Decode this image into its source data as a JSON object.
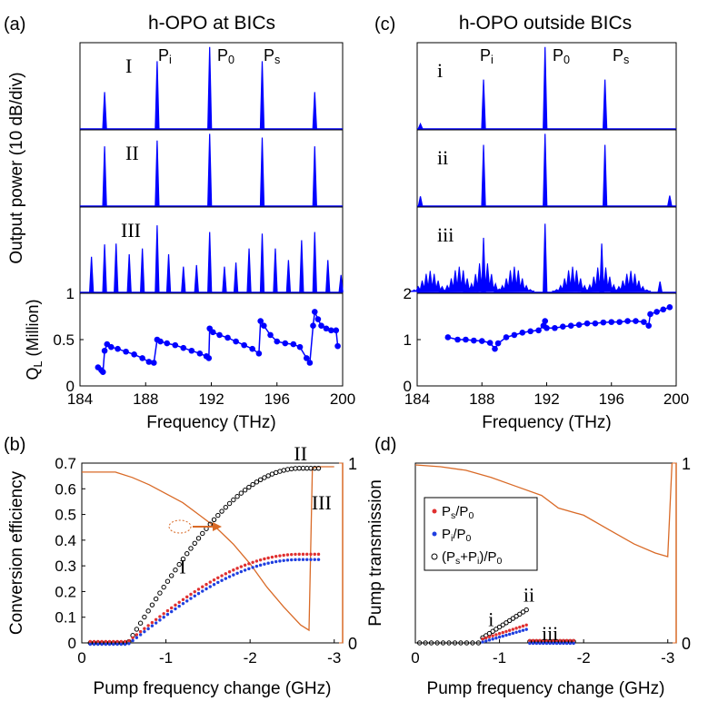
{
  "chart_data": {
    "panel_labels": [
      "(a)",
      "(b)",
      "(c)",
      "(d)"
    ],
    "panel_a": {
      "type": "line",
      "title": "h-OPO at BICs",
      "ylabel": "Output power (10 dB/div)",
      "xlim": [
        184,
        200
      ],
      "peak_labels": [
        "P",
        "P",
        "P"
      ],
      "peak_label_subs": [
        "i",
        "0",
        "s"
      ],
      "spectra": [
        {
          "name": "I",
          "peaks": [
            {
              "f": 185.5,
              "h": 0.43
            },
            {
              "f": 188.7,
              "h": 0.8
            },
            {
              "f": 191.9,
              "h": 0.97
            },
            {
              "f": 195.1,
              "h": 0.8
            },
            {
              "f": 198.3,
              "h": 0.43
            }
          ]
        },
        {
          "name": "II",
          "peaks": [
            {
              "f": 185.5,
              "h": 0.8
            },
            {
              "f": 188.7,
              "h": 0.88
            },
            {
              "f": 191.9,
              "h": 0.97
            },
            {
              "f": 195.1,
              "h": 0.92
            },
            {
              "f": 198.3,
              "h": 0.8
            }
          ]
        },
        {
          "name": "III",
          "peaks": [
            {
              "f": 184.7,
              "h": 0.42
            },
            {
              "f": 185.5,
              "h": 0.57
            },
            {
              "f": 186.2,
              "h": 0.58
            },
            {
              "f": 187.0,
              "h": 0.45
            },
            {
              "f": 187.8,
              "h": 0.52
            },
            {
              "f": 188.7,
              "h": 0.8
            },
            {
              "f": 189.4,
              "h": 0.45
            },
            {
              "f": 190.3,
              "h": 0.3
            },
            {
              "f": 191.1,
              "h": 0.32
            },
            {
              "f": 191.9,
              "h": 0.72
            },
            {
              "f": 192.8,
              "h": 0.3
            },
            {
              "f": 193.5,
              "h": 0.35
            },
            {
              "f": 194.3,
              "h": 0.52
            },
            {
              "f": 195.1,
              "h": 0.7
            },
            {
              "f": 195.9,
              "h": 0.52
            },
            {
              "f": 196.7,
              "h": 0.38
            },
            {
              "f": 197.5,
              "h": 0.62
            },
            {
              "f": 198.3,
              "h": 0.72
            },
            {
              "f": 199.1,
              "h": 0.38
            },
            {
              "f": 199.9,
              "h": 0.2
            }
          ]
        }
      ],
      "ql": {
        "ylabel": "Q",
        "ylabel_sub": "L",
        "ylabel_rest": " (Million)",
        "ylim": [
          0,
          1
        ],
        "yticks": [
          0,
          0.5,
          1
        ],
        "xticks": [
          184,
          188,
          192,
          196,
          200
        ],
        "xlabel": "Frequency (THz)",
        "points": [
          [
            185.1,
            0.2
          ],
          [
            185.3,
            0.17
          ],
          [
            185.4,
            0.15
          ],
          [
            185.5,
            0.38
          ],
          [
            185.65,
            0.45
          ],
          [
            185.9,
            0.42
          ],
          [
            186.3,
            0.4
          ],
          [
            186.8,
            0.37
          ],
          [
            187.3,
            0.34
          ],
          [
            187.8,
            0.3
          ],
          [
            188.2,
            0.26
          ],
          [
            188.5,
            0.25
          ],
          [
            188.7,
            0.5
          ],
          [
            188.9,
            0.48
          ],
          [
            189.3,
            0.46
          ],
          [
            189.8,
            0.44
          ],
          [
            190.3,
            0.41
          ],
          [
            190.8,
            0.38
          ],
          [
            191.3,
            0.35
          ],
          [
            191.7,
            0.32
          ],
          [
            191.85,
            0.3
          ],
          [
            191.9,
            0.62
          ],
          [
            192.1,
            0.58
          ],
          [
            192.5,
            0.55
          ],
          [
            193.0,
            0.52
          ],
          [
            193.5,
            0.48
          ],
          [
            194.0,
            0.44
          ],
          [
            194.5,
            0.4
          ],
          [
            194.9,
            0.35
          ],
          [
            195.0,
            0.7
          ],
          [
            195.2,
            0.65
          ],
          [
            195.6,
            0.55
          ],
          [
            196.0,
            0.48
          ],
          [
            196.5,
            0.46
          ],
          [
            197.0,
            0.45
          ],
          [
            197.4,
            0.42
          ],
          [
            197.8,
            0.3
          ],
          [
            198.0,
            0.25
          ],
          [
            198.2,
            0.65
          ],
          [
            198.3,
            0.8
          ],
          [
            198.5,
            0.72
          ],
          [
            198.7,
            0.65
          ],
          [
            199.0,
            0.62
          ],
          [
            199.3,
            0.6
          ],
          [
            199.6,
            0.6
          ],
          [
            199.7,
            0.43
          ]
        ]
      }
    },
    "panel_c": {
      "type": "line",
      "title": "h-OPO outside BICs",
      "xlim": [
        184,
        200
      ],
      "peak_labels": [
        "P",
        "P",
        "P"
      ],
      "peak_label_subs": [
        "i",
        "0",
        "s"
      ],
      "spectra": [
        {
          "name": "i",
          "peaks": [
            {
              "f": 184.2,
              "h": 0.05
            },
            {
              "f": 188.1,
              "h": 0.58
            },
            {
              "f": 191.9,
              "h": 0.97
            },
            {
              "f": 195.6,
              "h": 0.58
            }
          ]
        },
        {
          "name": "ii",
          "peaks": [
            {
              "f": 184.2,
              "h": 0.12
            },
            {
              "f": 188.1,
              "h": 0.82
            },
            {
              "f": 191.9,
              "h": 0.97
            },
            {
              "f": 195.6,
              "h": 0.82
            },
            {
              "f": 199.6,
              "h": 0.13
            }
          ]
        },
        {
          "name": "iii",
          "peaks": [
            {
              "f": 188.1,
              "h": 0.65
            },
            {
              "f": 191.9,
              "h": 0.82
            },
            {
              "f": 195.4,
              "h": 0.58
            },
            {
              "f": 199.0,
              "h": 0.12
            }
          ],
          "broad": [
            {
              "f": 184.8,
              "h": 0.25
            },
            {
              "f": 186.6,
              "h": 0.3
            },
            {
              "f": 188.1,
              "h": 0.4
            },
            {
              "f": 190.0,
              "h": 0.3
            },
            {
              "f": 193.6,
              "h": 0.3
            },
            {
              "f": 195.4,
              "h": 0.34
            },
            {
              "f": 197.2,
              "h": 0.25
            }
          ]
        }
      ],
      "ql": {
        "ylim": [
          0,
          2
        ],
        "yticks": [
          0,
          1,
          2
        ],
        "xticks": [
          184,
          188,
          192,
          196,
          200
        ],
        "xlabel": "Frequency (THz)",
        "points": [
          [
            185.9,
            1.05
          ],
          [
            186.5,
            1.0
          ],
          [
            187.0,
            1.0
          ],
          [
            187.5,
            0.98
          ],
          [
            188.0,
            0.97
          ],
          [
            188.5,
            0.93
          ],
          [
            188.8,
            0.8
          ],
          [
            189.0,
            0.92
          ],
          [
            189.5,
            1.05
          ],
          [
            190.0,
            1.1
          ],
          [
            190.5,
            1.15
          ],
          [
            191.0,
            1.18
          ],
          [
            191.5,
            1.2
          ],
          [
            191.8,
            1.3
          ],
          [
            191.9,
            1.4
          ],
          [
            192.0,
            1.25
          ],
          [
            192.5,
            1.25
          ],
          [
            193.0,
            1.28
          ],
          [
            193.5,
            1.3
          ],
          [
            194.0,
            1.32
          ],
          [
            194.5,
            1.35
          ],
          [
            195.0,
            1.35
          ],
          [
            195.5,
            1.37
          ],
          [
            196.0,
            1.38
          ],
          [
            196.5,
            1.38
          ],
          [
            197.0,
            1.4
          ],
          [
            197.5,
            1.4
          ],
          [
            198.0,
            1.38
          ],
          [
            198.3,
            1.3
          ],
          [
            198.4,
            1.55
          ],
          [
            198.8,
            1.6
          ],
          [
            199.2,
            1.65
          ],
          [
            199.6,
            1.7
          ]
        ]
      }
    },
    "panel_b": {
      "type": "scatter",
      "ylabel": "Conversion efficiency",
      "ylabel_right": "Pump transmission",
      "xlabel": "Pump frequency change (GHz)",
      "xlim": [
        0,
        -3.1
      ],
      "xticks": [
        0,
        -1,
        -2,
        -3
      ],
      "ylim": [
        0,
        0.7
      ],
      "yticks": [
        0,
        0.1,
        0.2,
        0.3,
        0.4,
        0.5,
        0.6,
        0.7
      ],
      "yticks_right": [
        0,
        1
      ],
      "annotations": [
        {
          "text": "I",
          "x": -1.2,
          "y": 0.27
        },
        {
          "text": "II",
          "x": -2.6,
          "y": 0.71
        },
        {
          "text": "III",
          "x": -2.85,
          "y": 0.52
        }
      ],
      "onset": -0.55,
      "end": -2.82,
      "transmission": [
        [
          0,
          0.95
        ],
        [
          -0.4,
          0.95
        ],
        [
          -0.6,
          0.92
        ],
        [
          -0.8,
          0.88
        ],
        [
          -1.0,
          0.83
        ],
        [
          -1.2,
          0.78
        ],
        [
          -1.4,
          0.71
        ],
        [
          -1.6,
          0.64
        ],
        [
          -1.8,
          0.55
        ],
        [
          -2.0,
          0.44
        ],
        [
          -2.2,
          0.31
        ],
        [
          -2.4,
          0.2
        ],
        [
          -2.6,
          0.1
        ],
        [
          -2.7,
          0.07
        ],
        [
          -2.74,
          0.97
        ],
        [
          -2.8,
          0.98
        ],
        [
          -3.0,
          0.98
        ]
      ],
      "series_ps_peak": 0.34,
      "series_total_peak": 0.68
    },
    "panel_d": {
      "type": "scatter",
      "xlabel": "Pump frequency change (GHz)",
      "xlim": [
        0,
        -3.1
      ],
      "xticks": [
        0,
        -1,
        -2,
        -3
      ],
      "yticks_right": [
        0,
        1
      ],
      "legend": [
        {
          "label": "P",
          "sub1": "s",
          "rest": "/P",
          "sub2": "0",
          "color": "#e03030",
          "marker": "dot"
        },
        {
          "label": "P",
          "sub1": "i",
          "rest": "/P",
          "sub2": "0",
          "color": "#1f3fe0",
          "marker": "dot"
        },
        {
          "label": "(P",
          "sub1": "s",
          "rest": "+P",
          "sub2": "i",
          "tail": ")/P",
          "sub3": "0",
          "color": "#000000",
          "marker": "circle"
        }
      ],
      "annotations": [
        {
          "text": "i",
          "x": -0.9,
          "y": 0.065
        },
        {
          "text": "ii",
          "x": -1.35,
          "y": 0.16
        },
        {
          "text": "iii",
          "x": -1.6,
          "y": 0.01
        }
      ],
      "transmission": [
        [
          0,
          0.99
        ],
        [
          -0.3,
          0.98
        ],
        [
          -0.6,
          0.96
        ],
        [
          -0.9,
          0.92
        ],
        [
          -1.2,
          0.87
        ],
        [
          -1.5,
          0.82
        ],
        [
          -1.7,
          0.75
        ],
        [
          -2.0,
          0.71
        ],
        [
          -2.3,
          0.63
        ],
        [
          -2.6,
          0.55
        ],
        [
          -2.85,
          0.5
        ],
        [
          -3.0,
          0.48
        ],
        [
          -3.05,
          1.0
        ]
      ]
    }
  },
  "colors": {
    "series_blue": "#0000ff",
    "orange": "#d96a27",
    "red": "#cc1111",
    "black": "#000000"
  }
}
